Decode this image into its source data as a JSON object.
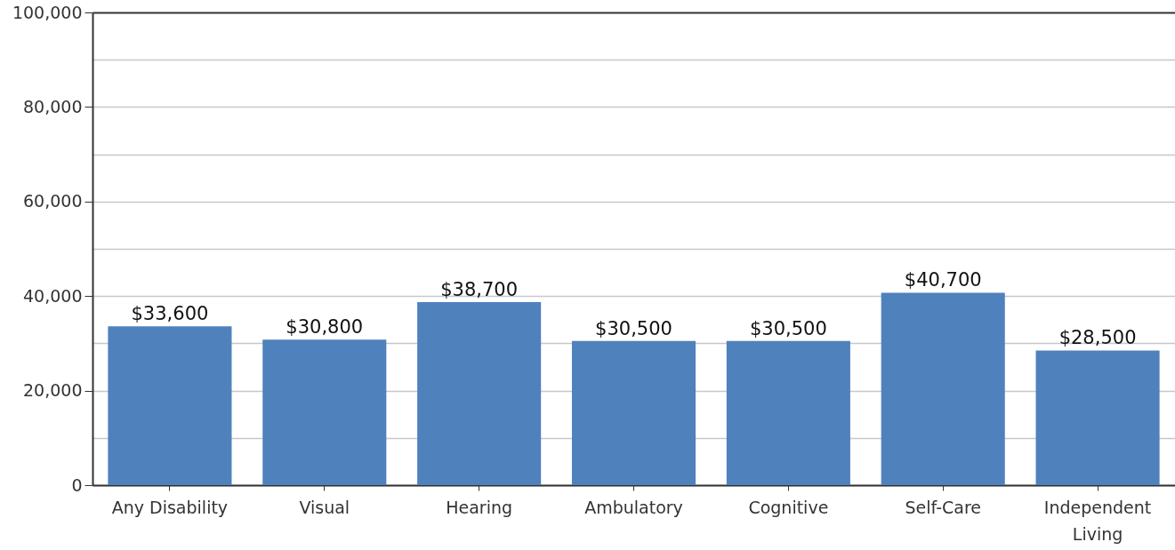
{
  "chart_data": {
    "type": "bar",
    "categories": [
      "Any Disability",
      "Visual",
      "Hearing",
      "Ambulatory",
      "Cognitive",
      "Self-Care",
      "Independent Living"
    ],
    "values": [
      33600,
      30800,
      38700,
      30500,
      30500,
      40700,
      28500
    ],
    "value_labels": [
      "$33,600",
      "$30,800",
      "$38,700",
      "$30,500",
      "$30,500",
      "$40,700",
      "$28,500"
    ],
    "color": "#4f81bd",
    "ylim": [
      0,
      100000
    ],
    "yticks": [
      0,
      {
        "value": 10000,
        "label": null
      },
      {
        "value": 20000,
        "label": "20,000"
      },
      {
        "value": 30000,
        "label": null
      },
      {
        "value": 40000,
        "label": "40,000"
      },
      {
        "value": 50000,
        "label": null
      },
      {
        "value": 60000,
        "label": "60,000"
      },
      {
        "value": 70000,
        "label": null
      },
      {
        "value": 80000,
        "label": "80,000"
      },
      {
        "value": 90000,
        "label": null
      },
      {
        "value": 100000,
        "label": "100,000"
      }
    ],
    "grid": true
  }
}
